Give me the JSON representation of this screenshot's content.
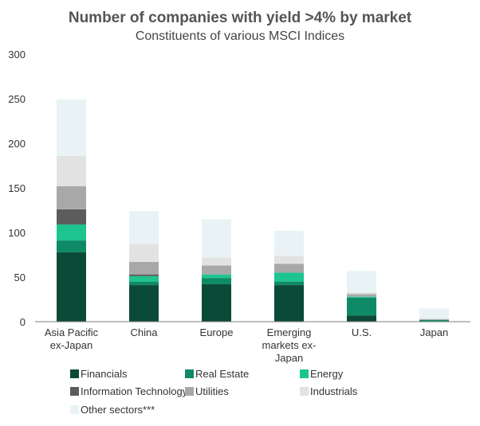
{
  "chart_data": {
    "type": "bar",
    "stacked": true,
    "title": "Number of companies with yield >4% by market",
    "subtitle": "Constituents of various MSCI Indices",
    "xlabel": "",
    "ylabel": "",
    "ylim": [
      0,
      300
    ],
    "yticks": [
      0,
      50,
      100,
      150,
      200,
      250,
      300
    ],
    "grid": false,
    "legend_position": "bottom",
    "categories": [
      [
        "Asia Pacific",
        "ex-Japan"
      ],
      [
        "China"
      ],
      [
        "Europe"
      ],
      [
        "Emerging",
        "markets ex-",
        "Japan"
      ],
      [
        "U.S."
      ],
      [
        "Japan"
      ]
    ],
    "series": [
      {
        "name": "Financials",
        "color": "#0b4a37",
        "values": [
          78,
          41,
          42,
          41,
          7,
          0
        ]
      },
      {
        "name": "Real Estate",
        "color": "#0e8a66",
        "values": [
          13,
          4,
          7,
          4,
          20,
          2
        ]
      },
      {
        "name": "Energy",
        "color": "#1ec48f",
        "values": [
          18,
          6,
          4,
          10,
          1,
          0
        ]
      },
      {
        "name": "Information Technology",
        "color": "#5c5c5c",
        "values": [
          17,
          2,
          0,
          0,
          0,
          0
        ]
      },
      {
        "name": "Utilities",
        "color": "#a8a8a8",
        "values": [
          26,
          14,
          10,
          10,
          3,
          1
        ]
      },
      {
        "name": "Industrials",
        "color": "#e2e2e2",
        "values": [
          34,
          20,
          9,
          9,
          2,
          0
        ]
      },
      {
        "name": "Other sectors***",
        "color": "#e9f3f5",
        "values": [
          63,
          37,
          43,
          28,
          24,
          12
        ]
      }
    ]
  }
}
